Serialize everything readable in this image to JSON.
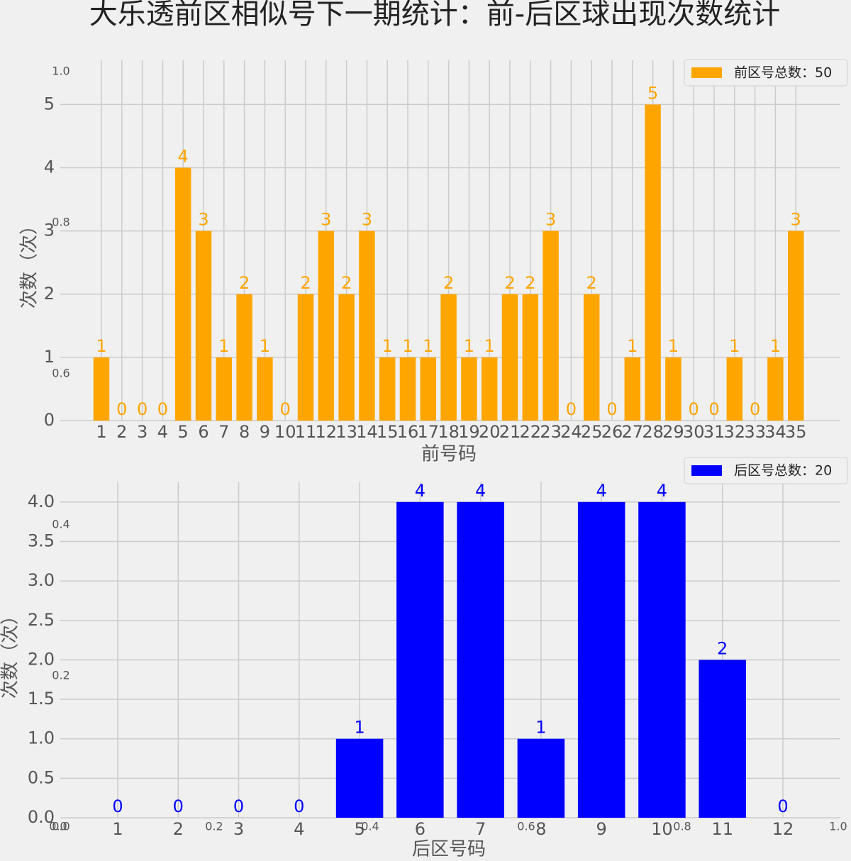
{
  "chart_data": [
    {
      "type": "bar",
      "title": "大乐透前区相似号下一期统计：前-后区球出现次数统计",
      "xlabel": "前号码",
      "ylabel": "次数（次）",
      "categories": [
        "1",
        "2",
        "3",
        "4",
        "5",
        "6",
        "7",
        "8",
        "9",
        "10",
        "11",
        "12",
        "13",
        "14",
        "15",
        "16",
        "17",
        "18",
        "19",
        "20",
        "21",
        "22",
        "23",
        "24",
        "25",
        "26",
        "27",
        "28",
        "29",
        "30",
        "31",
        "32",
        "33",
        "34",
        "35"
      ],
      "series": [
        {
          "name": "前区号总数：50",
          "color": "#ffa500",
          "values": [
            1,
            0,
            0,
            0,
            4,
            3,
            1,
            2,
            1,
            0,
            2,
            3,
            2,
            3,
            1,
            1,
            1,
            2,
            1,
            1,
            2,
            2,
            3,
            0,
            2,
            0,
            1,
            5,
            1,
            0,
            0,
            1,
            0,
            1,
            3
          ]
        }
      ],
      "ylim": [
        0,
        5.7
      ],
      "yticks": [
        0,
        1,
        2,
        3,
        4,
        5
      ],
      "grid": true,
      "legend": "upper right"
    },
    {
      "type": "bar",
      "xlabel": "后区号码",
      "ylabel": "次数（次）",
      "categories": [
        "1",
        "2",
        "3",
        "4",
        "5",
        "6",
        "7",
        "8",
        "9",
        "10",
        "11",
        "12"
      ],
      "series": [
        {
          "name": "后区号总数：20",
          "color": "#0000ff",
          "values": [
            0,
            0,
            0,
            0,
            1,
            4,
            4,
            1,
            4,
            4,
            2,
            0
          ]
        }
      ],
      "ylim": [
        0,
        4.25
      ],
      "yticks": [
        {
          "value": 0,
          "label": "0.0"
        },
        {
          "value": 0.5,
          "label": "0.5"
        },
        {
          "value": 1,
          "label": "1.0"
        },
        {
          "value": 1.5,
          "label": "1.5"
        },
        {
          "value": 2,
          "label": "2.0"
        },
        {
          "value": 2.5,
          "label": "2.5"
        },
        {
          "value": 3,
          "label": "3.0"
        },
        {
          "value": 3.5,
          "label": "3.5"
        },
        {
          "value": 4,
          "label": "4.0"
        }
      ],
      "grid": true,
      "legend": "upper right"
    },
    {
      "type": "axes",
      "xlim": [
        0,
        1
      ],
      "ylim": [
        0,
        1
      ],
      "xticks": [
        {
          "value": 0,
          "label": "0.0"
        },
        {
          "value": 0.2,
          "label": "0.2"
        },
        {
          "value": 0.4,
          "label": "0.4"
        },
        {
          "value": 0.6,
          "label": "0.6"
        },
        {
          "value": 0.8,
          "label": "0.8"
        },
        {
          "value": 1,
          "label": "1.0"
        }
      ],
      "yticks": [
        {
          "value": 0,
          "label": "0.0"
        },
        {
          "value": 0.2,
          "label": "0.2"
        },
        {
          "value": 0.4,
          "label": "0.4"
        },
        {
          "value": 0.6,
          "label": "0.6"
        },
        {
          "value": 0.8,
          "label": "0.8"
        },
        {
          "value": 1,
          "label": "1.0"
        }
      ]
    }
  ]
}
